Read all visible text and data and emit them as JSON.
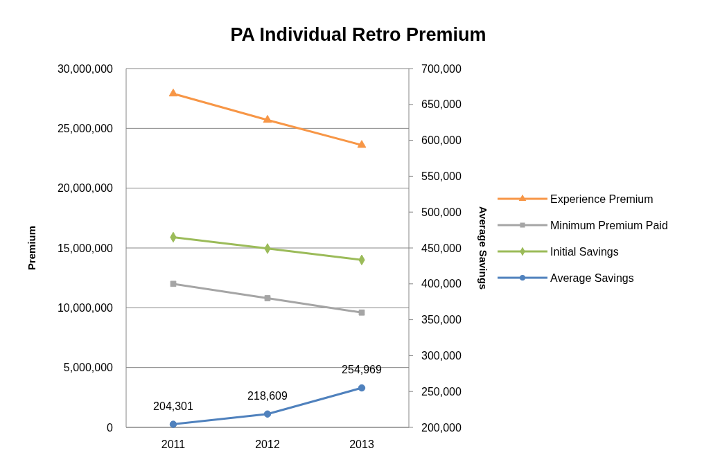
{
  "chart_data": {
    "type": "line",
    "title": "PA Individual Retro Premium",
    "ylabel": "Premium",
    "y2label": "Average Savings",
    "categories": [
      "2011",
      "2012",
      "2013"
    ],
    "series": [
      {
        "name": "Experience Premium",
        "color": "#f79646",
        "marker": "triangle",
        "values": [
          27900000,
          25700000,
          23600000
        ]
      },
      {
        "name": "Minimum Premium Paid",
        "color": "#a5a5a5",
        "marker": "square",
        "values": [
          12000000,
          10800000,
          9600000
        ]
      },
      {
        "name": "Initial Savings",
        "color": "#9bbb59",
        "marker": "diamond",
        "values": [
          15900000,
          14950000,
          14000000
        ]
      },
      {
        "name": "Average Savings",
        "color": "#4f81bd",
        "marker": "circle",
        "axis": "y2",
        "values": [
          204301,
          218609,
          254969
        ],
        "value_labels": [
          "204,301",
          "218,609",
          "254,969"
        ]
      }
    ],
    "ylim": [
      0,
      30000000
    ],
    "yticks": [
      {
        "value": 0,
        "label": "0"
      },
      {
        "value": 5000000,
        "label": "5,000,000"
      },
      {
        "value": 10000000,
        "label": "10,000,000"
      },
      {
        "value": 15000000,
        "label": "15,000,000"
      },
      {
        "value": 20000000,
        "label": "20,000,000"
      },
      {
        "value": 25000000,
        "label": "25,000,000"
      },
      {
        "value": 30000000,
        "label": "30,000,000"
      }
    ],
    "y2lim": [
      200000,
      700000
    ],
    "y2ticks": [
      {
        "value": 200000,
        "label": "200,000"
      },
      {
        "value": 250000,
        "label": "250,000"
      },
      {
        "value": 300000,
        "label": "300,000"
      },
      {
        "value": 350000,
        "label": "350,000"
      },
      {
        "value": 400000,
        "label": "400,000"
      },
      {
        "value": 450000,
        "label": "450,000"
      },
      {
        "value": 500000,
        "label": "500,000"
      },
      {
        "value": 550000,
        "label": "550,000"
      },
      {
        "value": 600000,
        "label": "600,000"
      },
      {
        "value": 650000,
        "label": "650,000"
      },
      {
        "value": 700000,
        "label": "700,000"
      }
    ],
    "grid": "y",
    "legend": "right"
  }
}
